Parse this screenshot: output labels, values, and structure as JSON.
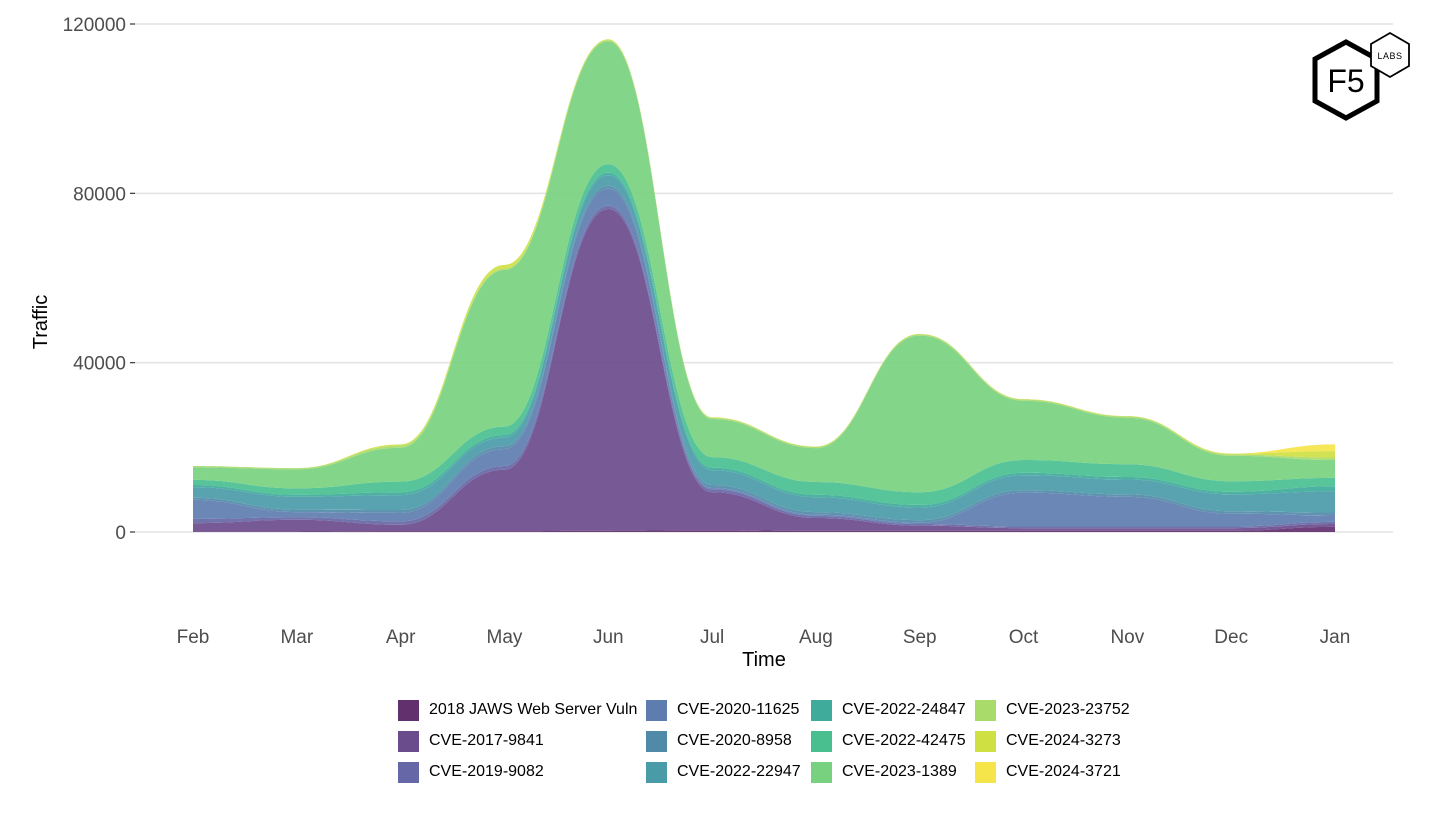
{
  "chart_data": {
    "type": "area",
    "subtype": "streamgraph",
    "xlabel": "Time",
    "ylabel": "Traffic",
    "x": [
      "Feb",
      "Mar",
      "Apr",
      "May",
      "Jun",
      "Jul",
      "Aug",
      "Sep",
      "Oct",
      "Nov",
      "Dec",
      "Jan"
    ],
    "yticks": [
      0,
      40000,
      80000,
      120000
    ],
    "yticklabels": [
      "0",
      "40000",
      "80000",
      "120000"
    ],
    "ylim": [
      -12000,
      120000
    ],
    "grid": "horizontal",
    "legend_position": "bottom",
    "series": [
      {
        "name": "2018 JAWS Web Server Vuln",
        "color": "#63306e",
        "values": [
          100,
          100,
          200,
          200,
          300,
          400,
          300,
          300,
          300,
          300,
          300,
          1200
        ]
      },
      {
        "name": "CVE-2017-9841",
        "color": "#6a4b8c",
        "values": [
          2000,
          2800,
          1500,
          14500,
          76000,
          9000,
          3000,
          1200,
          600,
          600,
          600,
          700
        ]
      },
      {
        "name": "CVE-2019-9082",
        "color": "#6667a6",
        "values": [
          1000,
          600,
          800,
          900,
          800,
          700,
          500,
          400,
          400,
          400,
          400,
          500
        ]
      },
      {
        "name": "CVE-2020-11625",
        "color": "#5e7daf",
        "values": [
          4500,
          1200,
          2000,
          4000,
          4000,
          300,
          300,
          300,
          8000,
          7000,
          3000,
          1500
        ]
      },
      {
        "name": "CVE-2020-8958",
        "color": "#518aa8",
        "values": [
          500,
          600,
          700,
          700,
          700,
          700,
          600,
          600,
          600,
          600,
          600,
          700
        ]
      },
      {
        "name": "CVE-2022-22947",
        "color": "#4a9ba8",
        "values": [
          2500,
          3000,
          3500,
          2000,
          2500,
          3500,
          3500,
          3000,
          3500,
          3500,
          4000,
          5000
        ]
      },
      {
        "name": "CVE-2022-24847",
        "color": "#3fab9a",
        "values": [
          500,
          500,
          700,
          600,
          600,
          600,
          600,
          600,
          600,
          600,
          600,
          1200
        ]
      },
      {
        "name": "CVE-2022-42475",
        "color": "#49bf90",
        "values": [
          1200,
          1500,
          2500,
          2000,
          2000,
          2500,
          3000,
          3000,
          3000,
          3000,
          2500,
          2000
        ]
      },
      {
        "name": "CVE-2023-1389",
        "color": "#78d17f",
        "values": [
          3000,
          4500,
          8000,
          37000,
          29000,
          9000,
          8000,
          37000,
          14000,
          11000,
          6000,
          4200
        ]
      },
      {
        "name": "CVE-2023-23752",
        "color": "#a8db6a",
        "values": [
          300,
          300,
          500,
          300,
          300,
          300,
          300,
          300,
          300,
          300,
          300,
          600
        ]
      },
      {
        "name": "CVE-2024-3273",
        "color": "#cfe043",
        "values": [
          0,
          0,
          300,
          900,
          200,
          100,
          100,
          100,
          100,
          100,
          200,
          1500
        ]
      },
      {
        "name": "CVE-2024-3721",
        "color": "#f5e54a",
        "values": [
          0,
          0,
          0,
          0,
          0,
          0,
          0,
          0,
          0,
          0,
          0,
          1600
        ]
      }
    ]
  },
  "logo": {
    "main_text": "F5",
    "badge_text": "LABS"
  }
}
